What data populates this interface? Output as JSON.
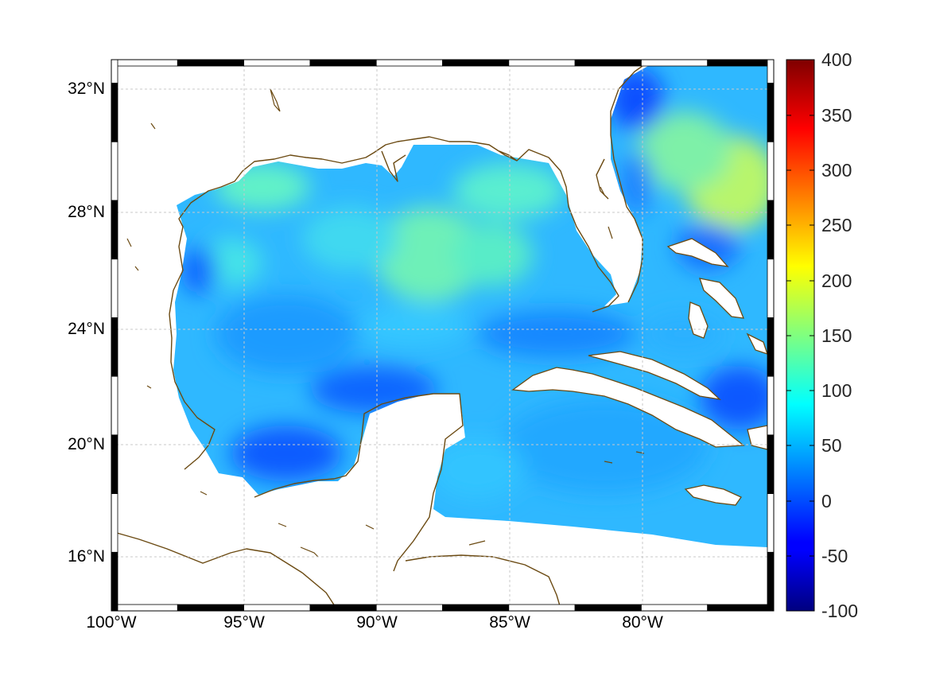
{
  "map": {
    "lat_ticks": [
      "32°N",
      "28°N",
      "24°N",
      "20°N",
      "16°N"
    ],
    "lon_ticks": [
      "100°W",
      "95°W",
      "90°W",
      "85°W",
      "80°W"
    ],
    "extent": {
      "lon_min": -100,
      "lon_max": -75,
      "lat_min": 14.2,
      "lat_max": 33
    },
    "grid": true
  },
  "colorbar": {
    "labels": [
      "400",
      "350",
      "300",
      "250",
      "200",
      "150",
      "100",
      "50",
      "0",
      "-50",
      "-100"
    ],
    "min": -100,
    "max": 400,
    "colormap": "jet"
  },
  "colors": {
    "coastline": "#6b4a12",
    "frame": "#000000",
    "grid": "#c8c8c8"
  }
}
